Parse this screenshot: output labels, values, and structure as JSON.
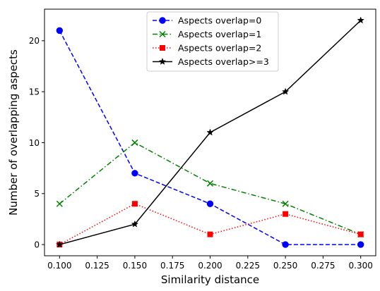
{
  "chart_data": {
    "type": "line",
    "title": "",
    "xlabel": "Similarity distance",
    "ylabel": "Number of overlapping aspects",
    "x": [
      0.1,
      0.15,
      0.2,
      0.25,
      0.3
    ],
    "xlim": [
      0.09,
      0.31
    ],
    "ylim": [
      -1.1,
      23.1
    ],
    "xticks": [
      0.1,
      0.125,
      0.15,
      0.175,
      0.2,
      0.225,
      0.25,
      0.275,
      0.3
    ],
    "xtick_labels": [
      "0.100",
      "0.125",
      "0.150",
      "0.175",
      "0.200",
      "0.225",
      "0.250",
      "0.275",
      "0.300"
    ],
    "yticks": [
      0,
      5,
      10,
      15,
      20
    ],
    "ytick_labels": [
      "0",
      "5",
      "10",
      "15",
      "20"
    ],
    "grid": false,
    "legend_position": "top-center",
    "series": [
      {
        "name": "Aspects overlap=0",
        "values": [
          21,
          7,
          4,
          0,
          0
        ],
        "color": "#0000ff",
        "dash": "dashed",
        "marker": "circle"
      },
      {
        "name": "Aspects overlap=1",
        "values": [
          4,
          10,
          6,
          4,
          1
        ],
        "color": "#008000",
        "dash": "dashdot",
        "marker": "x"
      },
      {
        "name": "Aspects overlap=2",
        "values": [
          0,
          4,
          1,
          3,
          1
        ],
        "color": "#ff0000",
        "dash": "dotted",
        "marker": "square"
      },
      {
        "name": "Aspects overlap>=3",
        "values": [
          0,
          2,
          11,
          15,
          22
        ],
        "color": "#000000",
        "dash": "solid",
        "marker": "star"
      }
    ]
  }
}
